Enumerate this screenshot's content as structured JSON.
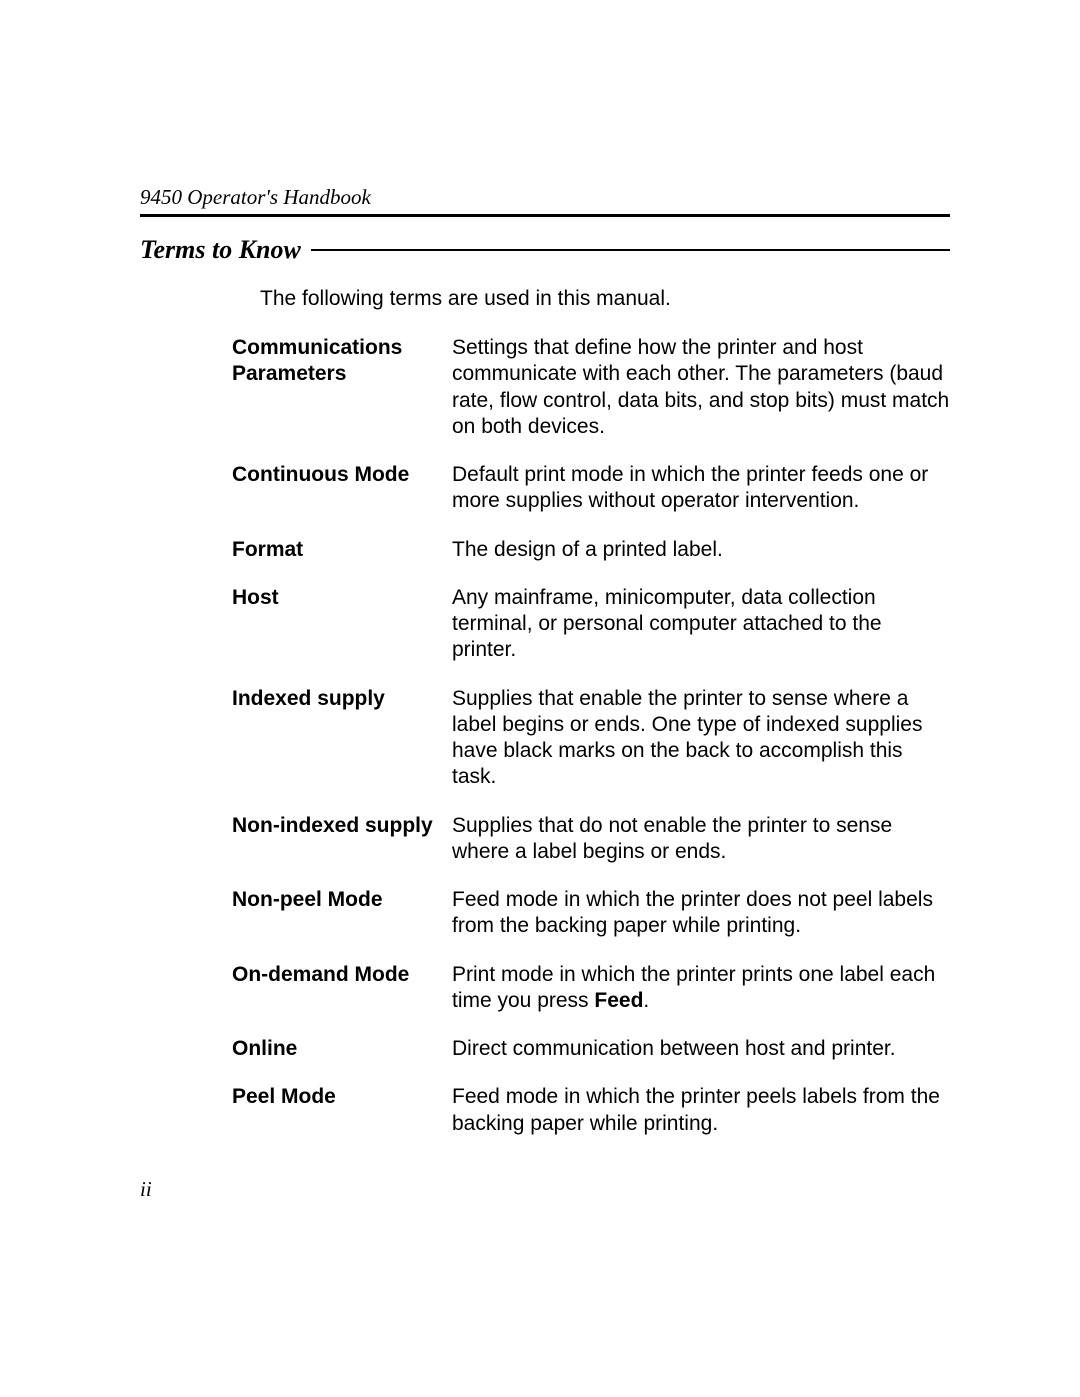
{
  "header": "9450 Operator's Handbook",
  "section_title": "Terms to Know",
  "intro": "The following terms are used in this manual.",
  "terms": [
    {
      "label": "Communications Parameters",
      "def": "Settings that define how the printer and host communicate with each other.  The parameters (baud rate, flow control, data bits, and stop bits) must match on both devices."
    },
    {
      "label": "Continuous Mode",
      "def": "Default print mode in which the printer feeds one or more supplies without operator intervention."
    },
    {
      "label": "Format",
      "def": "The design of a printed label."
    },
    {
      "label": "Host",
      "def": "Any mainframe, minicomputer, data collection terminal, or personal computer attached to the printer."
    },
    {
      "label": "Indexed supply",
      "def": "Supplies that enable the printer to sense where a label begins or ends.  One type of indexed supplies have black marks on the back to accomplish this task."
    },
    {
      "label": "Non-indexed supply",
      "def": "Supplies that do not enable the printer to sense where a label begins or ends."
    },
    {
      "label": "Non-peel Mode",
      "def": "Feed mode in which the printer does not peel labels from the backing paper while printing."
    },
    {
      "label": "On-demand Mode",
      "def_pre": "Print mode in which the printer prints one label each time you press ",
      "def_bold": "Feed",
      "def_post": "."
    },
    {
      "label": "Online",
      "def": "Direct communication between host and printer."
    },
    {
      "label": "Peel Mode",
      "def": "Feed mode in which the printer peels labels from the backing paper while printing."
    }
  ],
  "page_number": "ii"
}
